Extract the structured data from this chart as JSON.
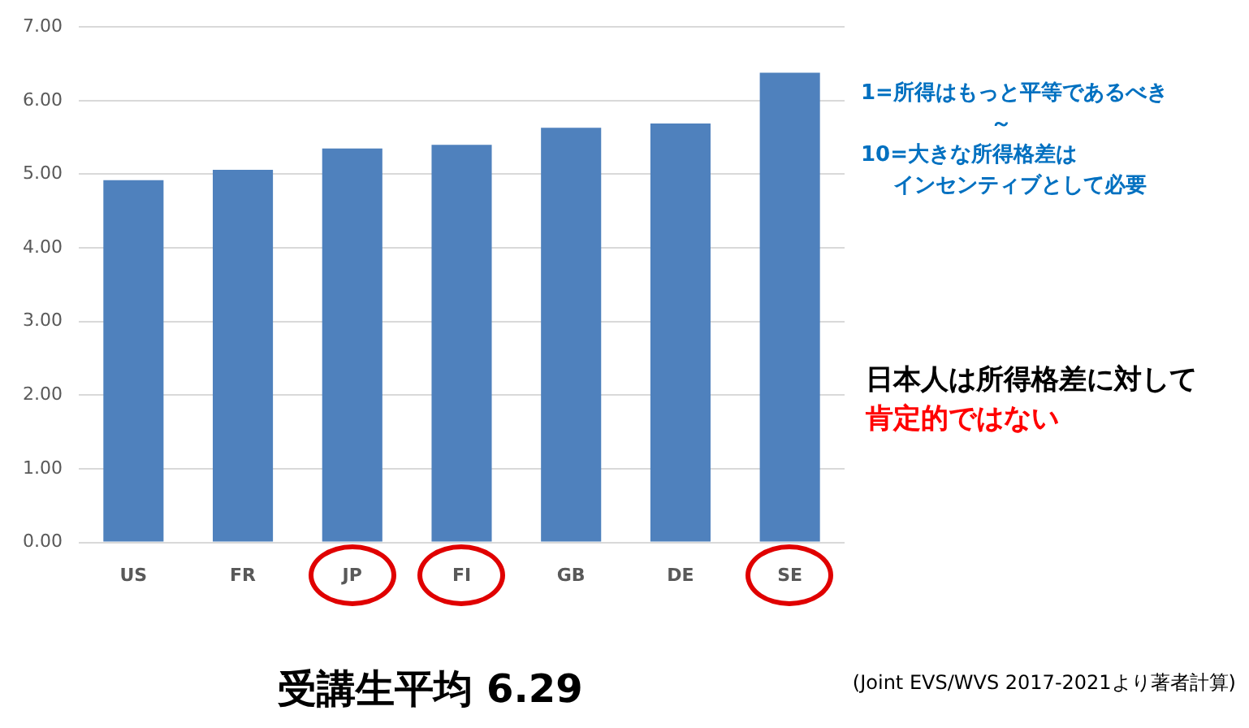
{
  "chart_data": {
    "type": "bar",
    "title": "受講生平均 6.29",
    "categories": [
      "US",
      "FR",
      "JP",
      "FI",
      "GB",
      "DE",
      "SE"
    ],
    "values": [
      4.92,
      5.06,
      5.35,
      5.4,
      5.63,
      5.69,
      6.38
    ],
    "color": "#4f81bd",
    "ylim": [
      0,
      7
    ],
    "yticks": [
      {
        "value": 0,
        "label": "0.00"
      },
      {
        "value": 1,
        "label": "1.00"
      },
      {
        "value": 2,
        "label": "2.00"
      },
      {
        "value": 3,
        "label": "3.00"
      },
      {
        "value": 4,
        "label": "4.00"
      },
      {
        "value": 5,
        "label": "5.00"
      },
      {
        "value": 6,
        "label": "6.00"
      },
      {
        "value": 7,
        "label": "7.00"
      }
    ],
    "grid": "y",
    "legend": false,
    "annotations": [
      "1=所得はもっと平等であるべき",
      "～",
      "10=大きな所得格差は",
      "インセンティブとして必要",
      "日本人は所得格差に対して",
      "肯定的ではない",
      "(Joint EVS/WVS 2017-2021より著者計算)"
    ]
  }
}
